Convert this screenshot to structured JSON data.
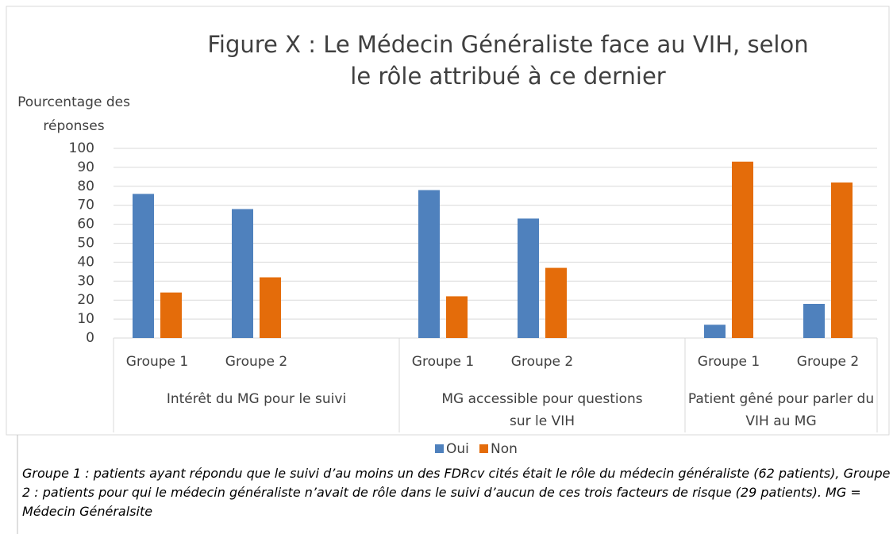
{
  "chart_data": {
    "type": "bar",
    "title": "Figure X : Le Médecin Généraliste face au VIH, selon le rôle attribué à ce dernier",
    "y_label": "Pourcentage des réponses",
    "categories": [
      "Groupe 1",
      "Groupe 2",
      "Groupe 1",
      "Groupe 2",
      "Groupe 1",
      "Groupe 2"
    ],
    "groups": [
      "Intérêt du MG pour le suivi",
      "MG accessible pour questions sur le VIH",
      "Patient gêné pour parler du VIH au MG"
    ],
    "series": [
      {
        "name": "Oui",
        "color": "#4f81bd",
        "values": [
          76,
          68,
          78,
          63,
          7,
          18
        ]
      },
      {
        "name": "Non",
        "color": "#e46c0a",
        "values": [
          24,
          32,
          22,
          37,
          93,
          82
        ]
      }
    ],
    "ylim": [
      0,
      100
    ],
    "yticks": [
      0,
      10,
      20,
      30,
      40,
      50,
      60,
      70,
      80,
      90,
      100
    ],
    "grid": true,
    "legend": "bottom",
    "caption": "Groupe 1 : patients ayant répondu que le suivi d’au moins un des FDRcv cités était le rôle du médecin généraliste (62 patients), Groupe 2 : patients pour qui le médecin généraliste n’avait de rôle dans le suivi d’aucun de ces trois facteurs de risque (29 patients). MG = Médecin Généralsite"
  }
}
